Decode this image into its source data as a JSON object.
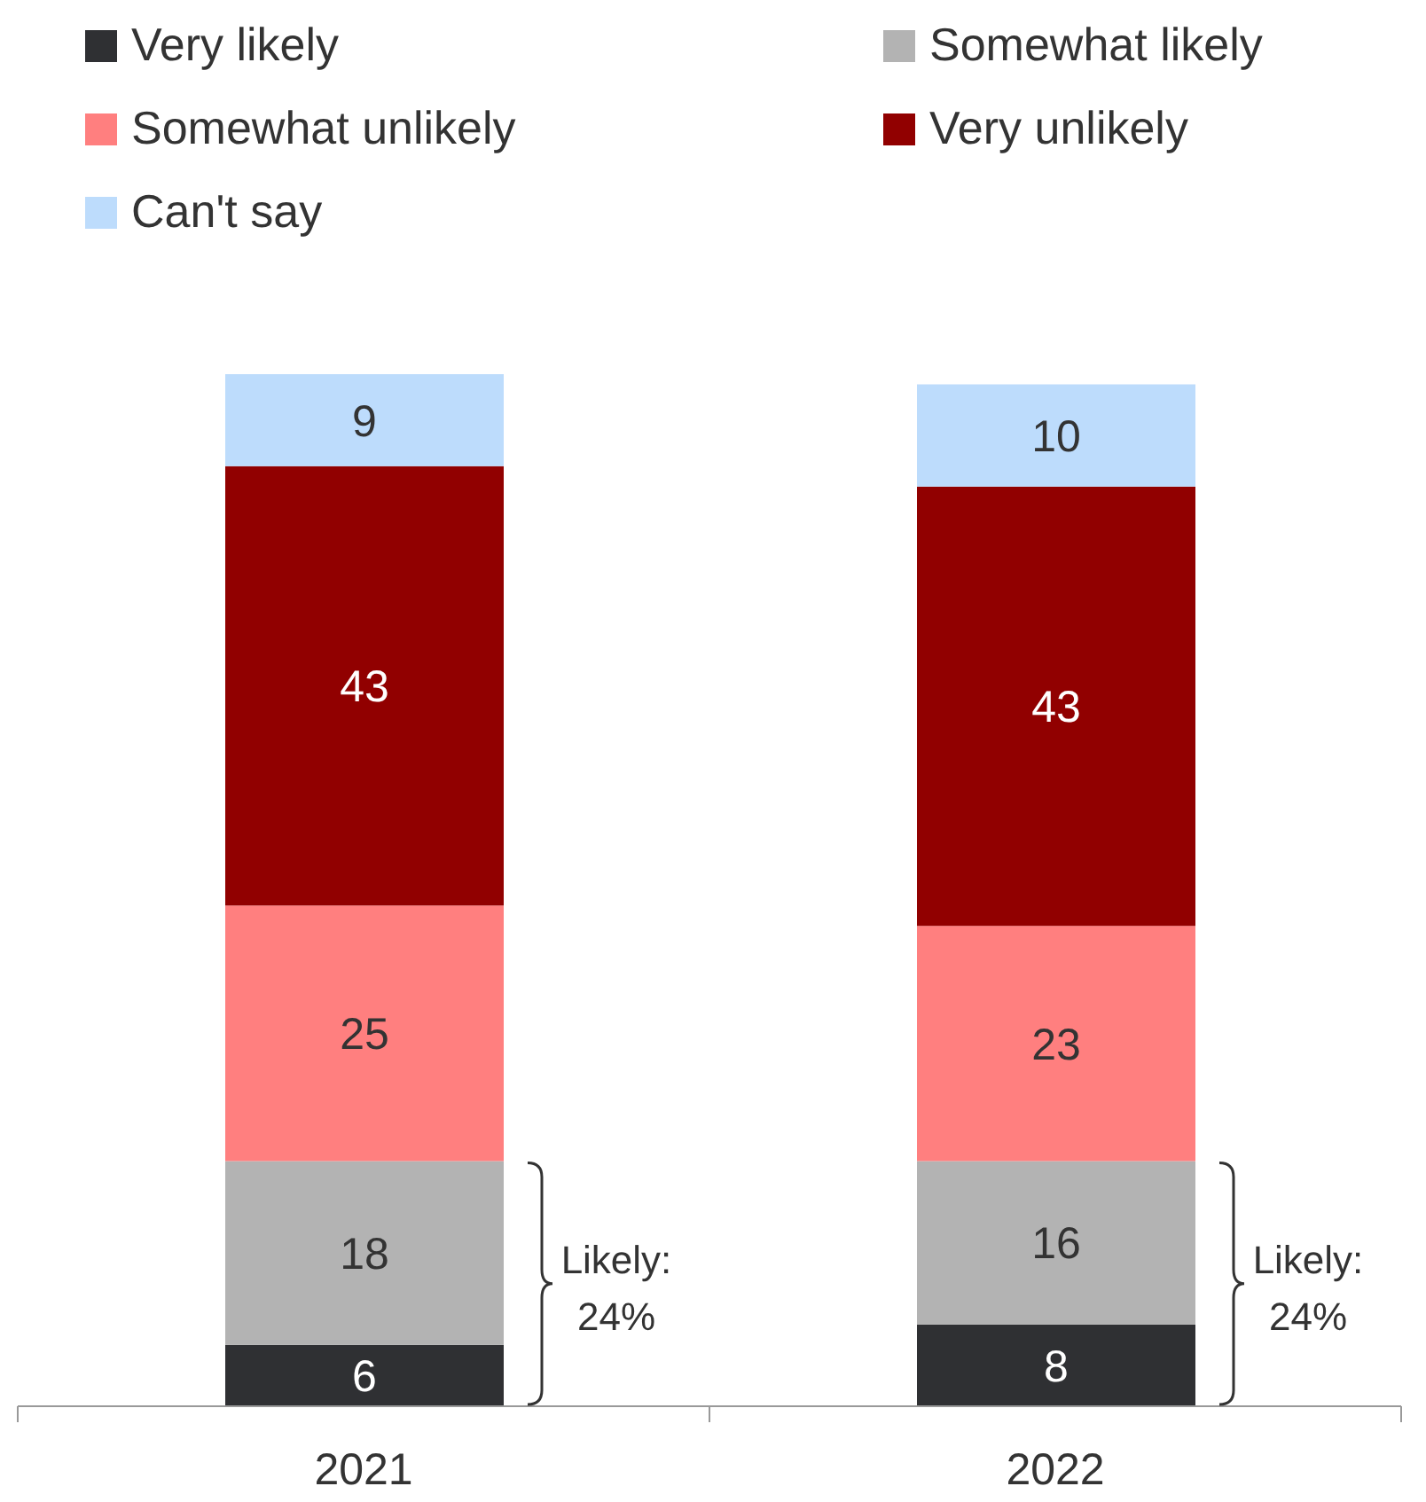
{
  "chart_data": {
    "type": "bar",
    "stacked": true,
    "data_labels": true,
    "legend": "top",
    "categories": [
      "2021",
      "2022"
    ],
    "series": [
      {
        "name": "Very likely",
        "color": "#2f3033",
        "values": [
          6,
          8
        ]
      },
      {
        "name": "Somewhat likely",
        "color": "#b3b3b3",
        "values": [
          18,
          16
        ]
      },
      {
        "name": "Somewhat unlikely",
        "color": "#ff7f7f",
        "values": [
          25,
          23
        ]
      },
      {
        "name": "Very unlikely",
        "color": "#910000",
        "values": [
          43,
          43
        ]
      },
      {
        "name": "Can't say",
        "color": "#bddcfc",
        "values": [
          9,
          10
        ]
      }
    ],
    "annotations": [
      "Likely:\n24%",
      "Likely:\n24%"
    ]
  }
}
